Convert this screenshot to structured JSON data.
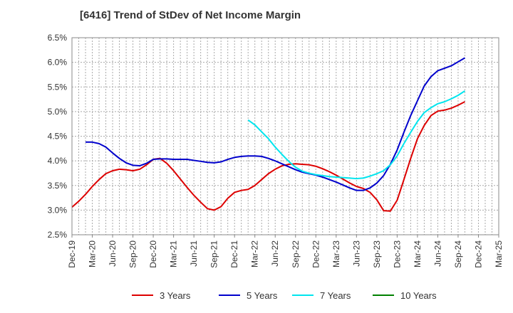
{
  "chart_data": {
    "type": "line",
    "title": "[6416]  Trend of StDev of Net Income Margin",
    "xlabel": "",
    "ylabel": "",
    "x_ticks": [
      "Dec-19",
      "Mar-20",
      "Jun-20",
      "Sep-20",
      "Dec-20",
      "Mar-21",
      "Jun-21",
      "Sep-21",
      "Dec-21",
      "Mar-22",
      "Jun-22",
      "Sep-22",
      "Dec-22",
      "Mar-23",
      "Jun-23",
      "Sep-23",
      "Dec-23",
      "Mar-24",
      "Jun-24",
      "Sep-24",
      "Dec-24",
      "Mar-25"
    ],
    "y_ticks": [
      "2.5%",
      "3.0%",
      "3.5%",
      "4.0%",
      "4.5%",
      "5.0%",
      "5.5%",
      "6.0%",
      "6.5%"
    ],
    "ylim": [
      2.5,
      6.5
    ],
    "grid": true,
    "legend_position": "bottom",
    "series": [
      {
        "name": "3 Years",
        "color": "#dd0000",
        "points": [
          [
            0,
            3.06
          ],
          [
            1,
            3.18
          ],
          [
            2,
            3.32
          ],
          [
            3,
            3.48
          ],
          [
            4,
            3.62
          ],
          [
            5,
            3.74
          ],
          [
            6,
            3.8
          ],
          [
            7,
            3.83
          ],
          [
            8,
            3.82
          ],
          [
            9,
            3.8
          ],
          [
            10,
            3.83
          ],
          [
            11,
            3.92
          ],
          [
            12,
            4.03
          ],
          [
            13,
            4.05
          ],
          [
            14,
            3.95
          ],
          [
            15,
            3.8
          ],
          [
            16,
            3.63
          ],
          [
            17,
            3.46
          ],
          [
            18,
            3.3
          ],
          [
            19,
            3.16
          ],
          [
            20,
            3.03
          ],
          [
            21,
            3.0
          ],
          [
            22,
            3.07
          ],
          [
            23,
            3.24
          ],
          [
            24,
            3.36
          ],
          [
            25,
            3.4
          ],
          [
            26,
            3.42
          ],
          [
            27,
            3.5
          ],
          [
            28,
            3.62
          ],
          [
            29,
            3.74
          ],
          [
            30,
            3.83
          ],
          [
            31,
            3.9
          ],
          [
            32,
            3.93
          ],
          [
            33,
            3.94
          ],
          [
            34,
            3.93
          ],
          [
            35,
            3.92
          ],
          [
            36,
            3.89
          ],
          [
            37,
            3.84
          ],
          [
            38,
            3.78
          ],
          [
            39,
            3.71
          ],
          [
            40,
            3.63
          ],
          [
            41,
            3.55
          ],
          [
            42,
            3.48
          ],
          [
            43,
            3.44
          ],
          [
            44,
            3.36
          ],
          [
            45,
            3.21
          ],
          [
            46,
            2.99
          ],
          [
            47,
            2.98
          ],
          [
            48,
            3.2
          ],
          [
            49,
            3.62
          ],
          [
            50,
            4.05
          ],
          [
            51,
            4.45
          ],
          [
            52,
            4.72
          ],
          [
            53,
            4.92
          ],
          [
            54,
            5.01
          ],
          [
            55,
            5.03
          ],
          [
            56,
            5.07
          ],
          [
            57,
            5.13
          ],
          [
            58,
            5.2
          ]
        ]
      },
      {
        "name": "5 Years",
        "color": "#0000cc",
        "points": [
          [
            2,
            4.38
          ],
          [
            3,
            4.38
          ],
          [
            4,
            4.35
          ],
          [
            5,
            4.28
          ],
          [
            6,
            4.16
          ],
          [
            7,
            4.05
          ],
          [
            8,
            3.96
          ],
          [
            9,
            3.91
          ],
          [
            10,
            3.9
          ],
          [
            11,
            3.95
          ],
          [
            12,
            4.03
          ],
          [
            13,
            4.04
          ],
          [
            14,
            4.04
          ],
          [
            15,
            4.03
          ],
          [
            16,
            4.03
          ],
          [
            17,
            4.03
          ],
          [
            18,
            4.01
          ],
          [
            19,
            3.99
          ],
          [
            20,
            3.97
          ],
          [
            21,
            3.96
          ],
          [
            22,
            3.98
          ],
          [
            23,
            4.03
          ],
          [
            24,
            4.07
          ],
          [
            25,
            4.09
          ],
          [
            26,
            4.1
          ],
          [
            27,
            4.1
          ],
          [
            28,
            4.09
          ],
          [
            29,
            4.05
          ],
          [
            30,
            4.0
          ],
          [
            31,
            3.94
          ],
          [
            32,
            3.88
          ],
          [
            33,
            3.82
          ],
          [
            34,
            3.77
          ],
          [
            35,
            3.74
          ],
          [
            36,
            3.71
          ],
          [
            37,
            3.67
          ],
          [
            38,
            3.62
          ],
          [
            39,
            3.57
          ],
          [
            40,
            3.51
          ],
          [
            41,
            3.45
          ],
          [
            42,
            3.4
          ],
          [
            43,
            3.4
          ],
          [
            44,
            3.45
          ],
          [
            45,
            3.55
          ],
          [
            46,
            3.7
          ],
          [
            47,
            3.93
          ],
          [
            48,
            4.22
          ],
          [
            49,
            4.58
          ],
          [
            50,
            4.92
          ],
          [
            51,
            5.22
          ],
          [
            52,
            5.52
          ],
          [
            53,
            5.71
          ],
          [
            54,
            5.83
          ],
          [
            55,
            5.88
          ],
          [
            56,
            5.93
          ],
          [
            57,
            6.01
          ],
          [
            58,
            6.09
          ]
        ]
      },
      {
        "name": "7 Years",
        "color": "#00e5ee",
        "points": [
          [
            26,
            4.83
          ],
          [
            27,
            4.73
          ],
          [
            28,
            4.59
          ],
          [
            29,
            4.45
          ],
          [
            30,
            4.28
          ],
          [
            31,
            4.13
          ],
          [
            32,
            3.99
          ],
          [
            33,
            3.87
          ],
          [
            34,
            3.79
          ],
          [
            35,
            3.75
          ],
          [
            36,
            3.72
          ],
          [
            37,
            3.7
          ],
          [
            38,
            3.68
          ],
          [
            39,
            3.67
          ],
          [
            40,
            3.66
          ],
          [
            41,
            3.65
          ],
          [
            42,
            3.64
          ],
          [
            43,
            3.65
          ],
          [
            44,
            3.69
          ],
          [
            45,
            3.74
          ],
          [
            46,
            3.8
          ],
          [
            47,
            3.92
          ],
          [
            48,
            4.1
          ],
          [
            49,
            4.35
          ],
          [
            50,
            4.58
          ],
          [
            51,
            4.8
          ],
          [
            52,
            4.98
          ],
          [
            53,
            5.08
          ],
          [
            54,
            5.16
          ],
          [
            55,
            5.2
          ],
          [
            56,
            5.26
          ],
          [
            57,
            5.33
          ],
          [
            58,
            5.42
          ]
        ]
      },
      {
        "name": "10 Years",
        "color": "#008000",
        "points": []
      }
    ]
  }
}
